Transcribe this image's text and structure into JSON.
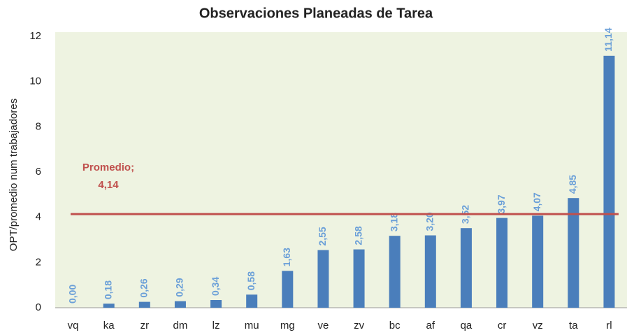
{
  "chart_data": {
    "type": "bar",
    "title": "Observaciones Planeadas de Tarea",
    "y_label": "OPT/promedio num trabajadores",
    "categories": [
      "vq",
      "ka",
      "zr",
      "dm",
      "lz",
      "mu",
      "mg",
      "ve",
      "zv",
      "bc",
      "af",
      "qa",
      "cr",
      "vz",
      "ta",
      "rl"
    ],
    "values": [
      0.0,
      0.18,
      0.26,
      0.29,
      0.34,
      0.58,
      1.63,
      2.55,
      2.58,
      3.18,
      3.2,
      3.52,
      3.97,
      4.07,
      4.85,
      11.14
    ],
    "value_labels": [
      "0,00",
      "0,18",
      "0,26",
      "0,29",
      "0,34",
      "0,58",
      "1,63",
      "2,55",
      "2,58",
      "3,18",
      "3,20",
      "3,52",
      "3,97",
      "4,07",
      "4,85",
      "11,14"
    ],
    "color": "#4a7ebb",
    "label_color": "#6a9fd8",
    "ylim": [
      0,
      12
    ],
    "yticks": [
      0,
      2,
      4,
      6,
      8,
      10,
      12
    ],
    "reference_line": {
      "value": 4.14,
      "label": "Promedio;",
      "value_label": "4,14",
      "color": "#c0504d"
    }
  }
}
